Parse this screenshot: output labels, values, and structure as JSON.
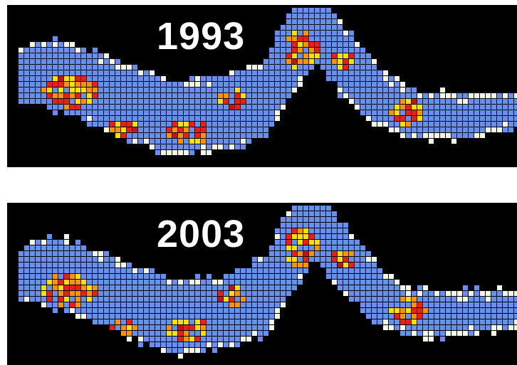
{
  "panels": [
    {
      "year_label": "1993"
    },
    {
      "year_label": "2003"
    }
  ],
  "colors": {
    "background": "#000000",
    "low": "#6a8fe6",
    "pale": "#f3f8e6",
    "medium": "#f6e011",
    "high": "#f39513",
    "very_high": "#e3221a",
    "extreme": "#b8181a"
  }
}
